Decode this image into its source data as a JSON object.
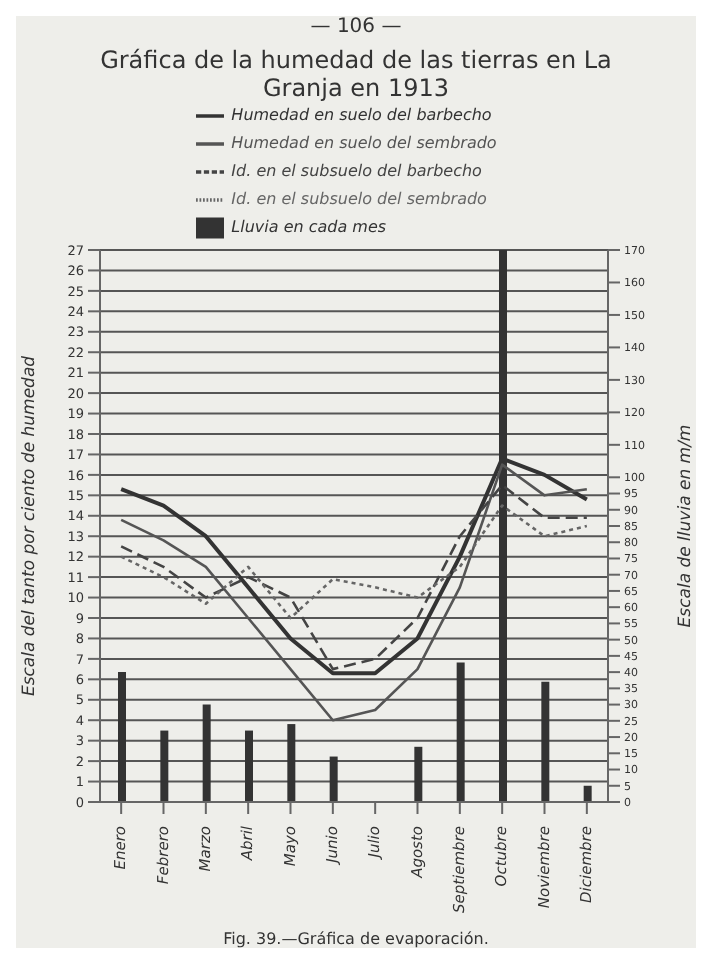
{
  "chart_data": {
    "type": "line",
    "title": "Gráfica de la humedad de las tierras en La Granja en 1913",
    "ylabel": "Escala del tanto por ciento de humedad",
    "y2label": "Escala de lluvia en m/m",
    "annotations": [
      "— 106 —",
      "Fig. 39.—Gráfica de evaporación."
    ],
    "categories": [
      "Enero",
      "Febrero",
      "Marzo",
      "Abril",
      "Mayo",
      "Junio",
      "Julio",
      "Agosto",
      "Septiembre",
      "Octubre",
      "Noviembre",
      "Diciembre"
    ],
    "series": [
      {
        "name": "Humedad en suelo del barbecho",
        "color": "#333333",
        "line_style": "solid",
        "values": [
          15.3,
          14.5,
          13.0,
          10.5,
          8.0,
          6.3,
          6.3,
          8.0,
          12.0,
          16.8,
          16.0,
          14.8
        ]
      },
      {
        "name": "Humedad en suelo del sembrado",
        "color": "#555555",
        "line_style": "solid",
        "values": [
          13.8,
          12.8,
          11.5,
          9.0,
          6.5,
          4.0,
          4.5,
          6.5,
          10.5,
          16.5,
          15.0,
          15.3
        ]
      },
      {
        "name": "Id. en el subsuelo del barbecho",
        "color": "#444444",
        "line_style": "dashed",
        "values": [
          12.5,
          11.5,
          10.0,
          11.0,
          10.0,
          6.5,
          7.0,
          9.0,
          13.0,
          15.5,
          13.9,
          13.9
        ]
      },
      {
        "name": "Id. en el subsuelo del sembrado",
        "color": "#666666",
        "line_style": "dotted",
        "values": [
          12.0,
          11.0,
          9.7,
          11.5,
          9.0,
          10.9,
          10.5,
          10.0,
          11.5,
          14.5,
          13.0,
          13.5
        ]
      },
      {
        "name": "Lluvia en cada mes",
        "type": "bar",
        "axis": "y2",
        "color": "#333333",
        "values": [
          40,
          22,
          30,
          22,
          24,
          14,
          0,
          17,
          43,
          170,
          37,
          5
        ]
      }
    ],
    "ylim": [
      0,
      27
    ],
    "yticks": [
      0,
      1,
      2,
      3,
      4,
      5,
      6,
      7,
      8,
      9,
      10,
      11,
      12,
      13,
      14,
      15,
      16,
      17,
      18,
      19,
      20,
      21,
      22,
      23,
      24,
      25,
      26,
      27
    ],
    "y2lim": [
      0,
      170
    ],
    "y2ticks": [
      0,
      5,
      10,
      15,
      20,
      25,
      30,
      35,
      40,
      45,
      50,
      55,
      60,
      65,
      70,
      75,
      80,
      85,
      90,
      95,
      100,
      110,
      120,
      130,
      140,
      150,
      160,
      170
    ],
    "grid": "y",
    "legend": "top",
    "marker": "none"
  }
}
